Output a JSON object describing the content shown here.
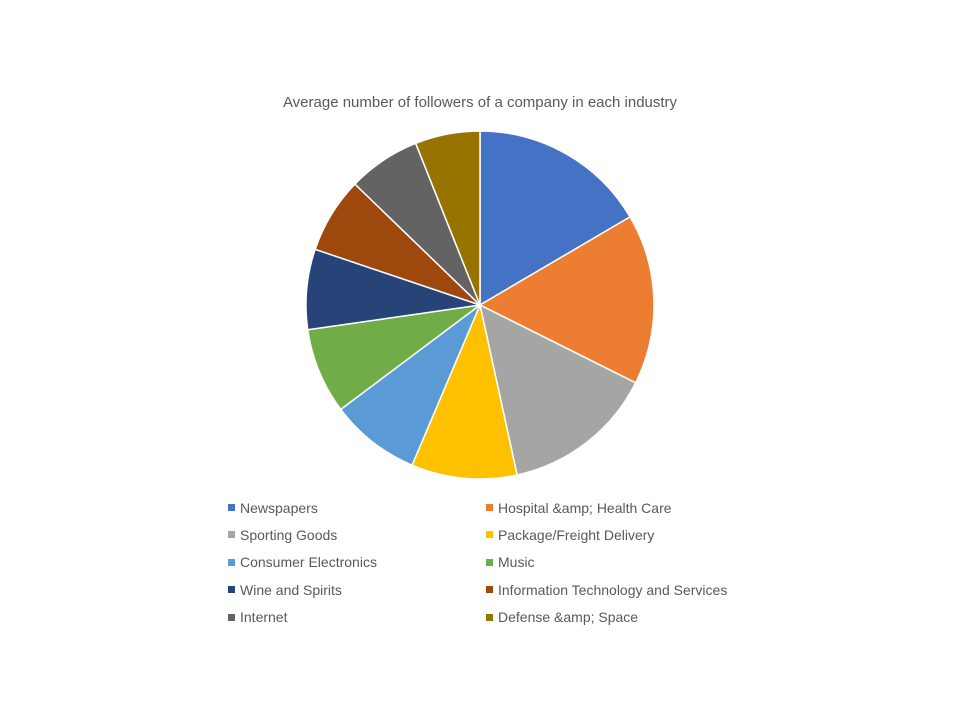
{
  "chart_data": {
    "type": "pie",
    "title": "Average number of followers of a company in each industry",
    "legend_position": "bottom",
    "slices": [
      {
        "label": "Newspapers",
        "value": 16.2,
        "color": "#4472C4"
      },
      {
        "label": "Hospital &amp; Health Care",
        "value": 15.5,
        "color": "#ED7D31"
      },
      {
        "label": "Sporting Goods",
        "value": 13.9,
        "color": "#A5A5A5"
      },
      {
        "label": "Package/Freight Delivery",
        "value": 9.6,
        "color": "#FFC000"
      },
      {
        "label": "Consumer Electronics",
        "value": 8.2,
        "color": "#5B9BD5"
      },
      {
        "label": "Music",
        "value": 7.8,
        "color": "#70AD47"
      },
      {
        "label": "Wine and Spirits",
        "value": 7.3,
        "color": "#264478"
      },
      {
        "label": "Information Technology and Services",
        "value": 6.9,
        "color": "#9E480E"
      },
      {
        "label": "Internet",
        "value": 6.6,
        "color": "#636363"
      },
      {
        "label": "Defense &amp; Space",
        "value": 5.9,
        "color": "#997300"
      }
    ]
  }
}
